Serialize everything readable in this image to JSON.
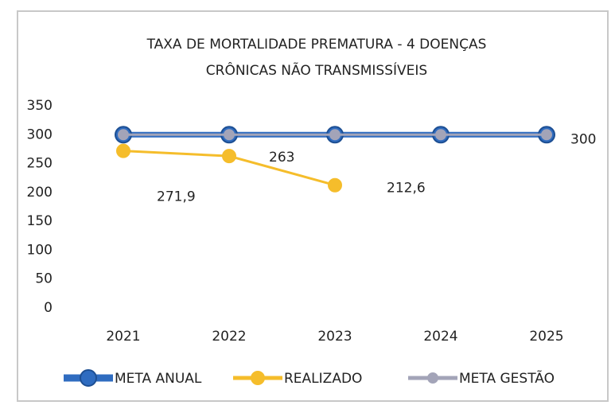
{
  "chart_data": {
    "type": "line",
    "title": [
      "TAXA DE MORTALIDADE PREMATURA - 4 DOENÇAS",
      "CRÔNICAS NÃO TRANSMISSÍVEIS"
    ],
    "categories": [
      "2021",
      "2022",
      "2023",
      "2024",
      "2025"
    ],
    "series": [
      {
        "name": "META ANUAL",
        "color": "#2f6cc0",
        "values": [
          300,
          300,
          300,
          300,
          300
        ],
        "value_labels": [
          null,
          null,
          null,
          null,
          null
        ]
      },
      {
        "name": "REALIZADO",
        "color": "#f5bd2b",
        "values": [
          271.9,
          263,
          212.6,
          null,
          null
        ],
        "value_labels": [
          "271,9",
          "263",
          "212,6",
          null,
          null
        ]
      },
      {
        "name": "META GESTÃO",
        "color": "#a3a4b8",
        "values": [
          300,
          300,
          300,
          300,
          300
        ],
        "value_labels": [
          null,
          null,
          null,
          null,
          "300"
        ]
      }
    ],
    "ylim": [
      0,
      350
    ],
    "yticks": [
      0,
      50,
      100,
      150,
      200,
      250,
      300,
      350
    ],
    "grid": false,
    "legend": "bottom"
  }
}
